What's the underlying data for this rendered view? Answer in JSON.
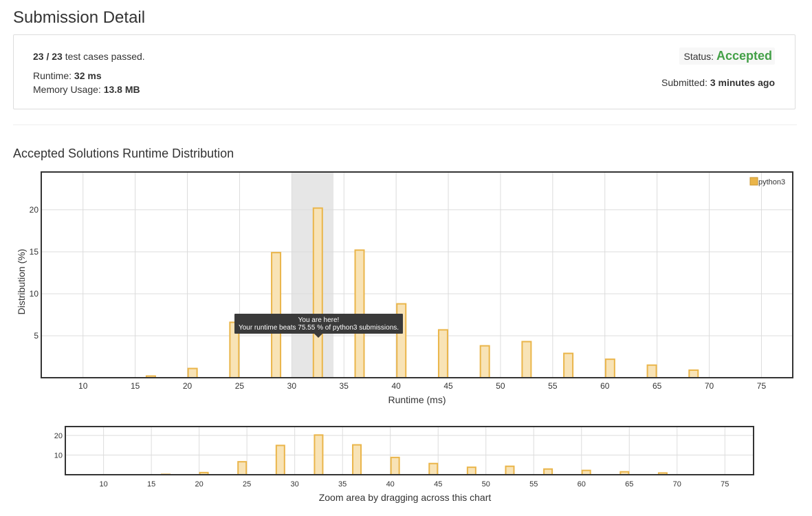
{
  "page_title": "Submission Detail",
  "summary": {
    "passed_count": "23 / 23",
    "passed_text": "test cases passed.",
    "runtime_label": "Runtime:",
    "runtime_value": "32 ms",
    "memory_label": "Memory Usage:",
    "memory_value": "13.8 MB",
    "status_label": "Status:",
    "status_value": "Accepted",
    "submitted_label": "Submitted:",
    "submitted_value": "3 minutes ago"
  },
  "section_title": "Accepted Solutions Runtime Distribution",
  "colors": {
    "bar_fill": "#f8e3b6",
    "bar_stroke": "#eab54a",
    "accepted": "#43a047",
    "highlight": "#e6e6e6",
    "tooltip_bg": "#3a3a3a"
  },
  "tooltip": {
    "line1": "You are here!",
    "line2": "Your runtime beats 75.55 % of python3 submissions."
  },
  "zoom_caption": "Zoom area by dragging across this chart",
  "chart_data": [
    {
      "type": "bar",
      "xlabel": "Runtime (ms)",
      "ylabel": "Distribution (%)",
      "xlim": [
        6,
        78
      ],
      "ylim": [
        0,
        24.5
      ],
      "x_ticks": [
        10,
        15,
        20,
        25,
        30,
        35,
        40,
        45,
        50,
        55,
        60,
        65,
        70,
        75
      ],
      "y_ticks": [
        5,
        10,
        15,
        20
      ],
      "grid": true,
      "legend_position": "top-right",
      "highlight_range": [
        30,
        34
      ],
      "series": [
        {
          "name": "python3",
          "x": [
            16.5,
            20.5,
            24.5,
            28.5,
            32.5,
            36.5,
            40.5,
            44.5,
            48.5,
            52.5,
            56.5,
            60.5,
            64.5,
            68.5
          ],
          "values": [
            0.2,
            1.1,
            6.6,
            14.9,
            20.2,
            15.2,
            8.8,
            5.7,
            3.8,
            4.3,
            2.9,
            2.2,
            1.5,
            0.9
          ]
        }
      ]
    },
    {
      "type": "bar",
      "xlim": [
        6,
        78
      ],
      "ylim": [
        0,
        24.5
      ],
      "x_ticks": [
        10,
        15,
        20,
        25,
        30,
        35,
        40,
        45,
        50,
        55,
        60,
        65,
        70,
        75
      ],
      "y_ticks": [
        10,
        20
      ],
      "grid": true,
      "series": [
        {
          "x": [
            16.5,
            20.5,
            24.5,
            28.5,
            32.5,
            36.5,
            40.5,
            44.5,
            48.5,
            52.5,
            56.5,
            60.5,
            64.5,
            68.5
          ],
          "values": [
            0.2,
            1.1,
            6.6,
            14.9,
            20.2,
            15.2,
            8.8,
            5.7,
            3.8,
            4.3,
            2.9,
            2.2,
            1.5,
            0.9
          ]
        }
      ]
    }
  ]
}
